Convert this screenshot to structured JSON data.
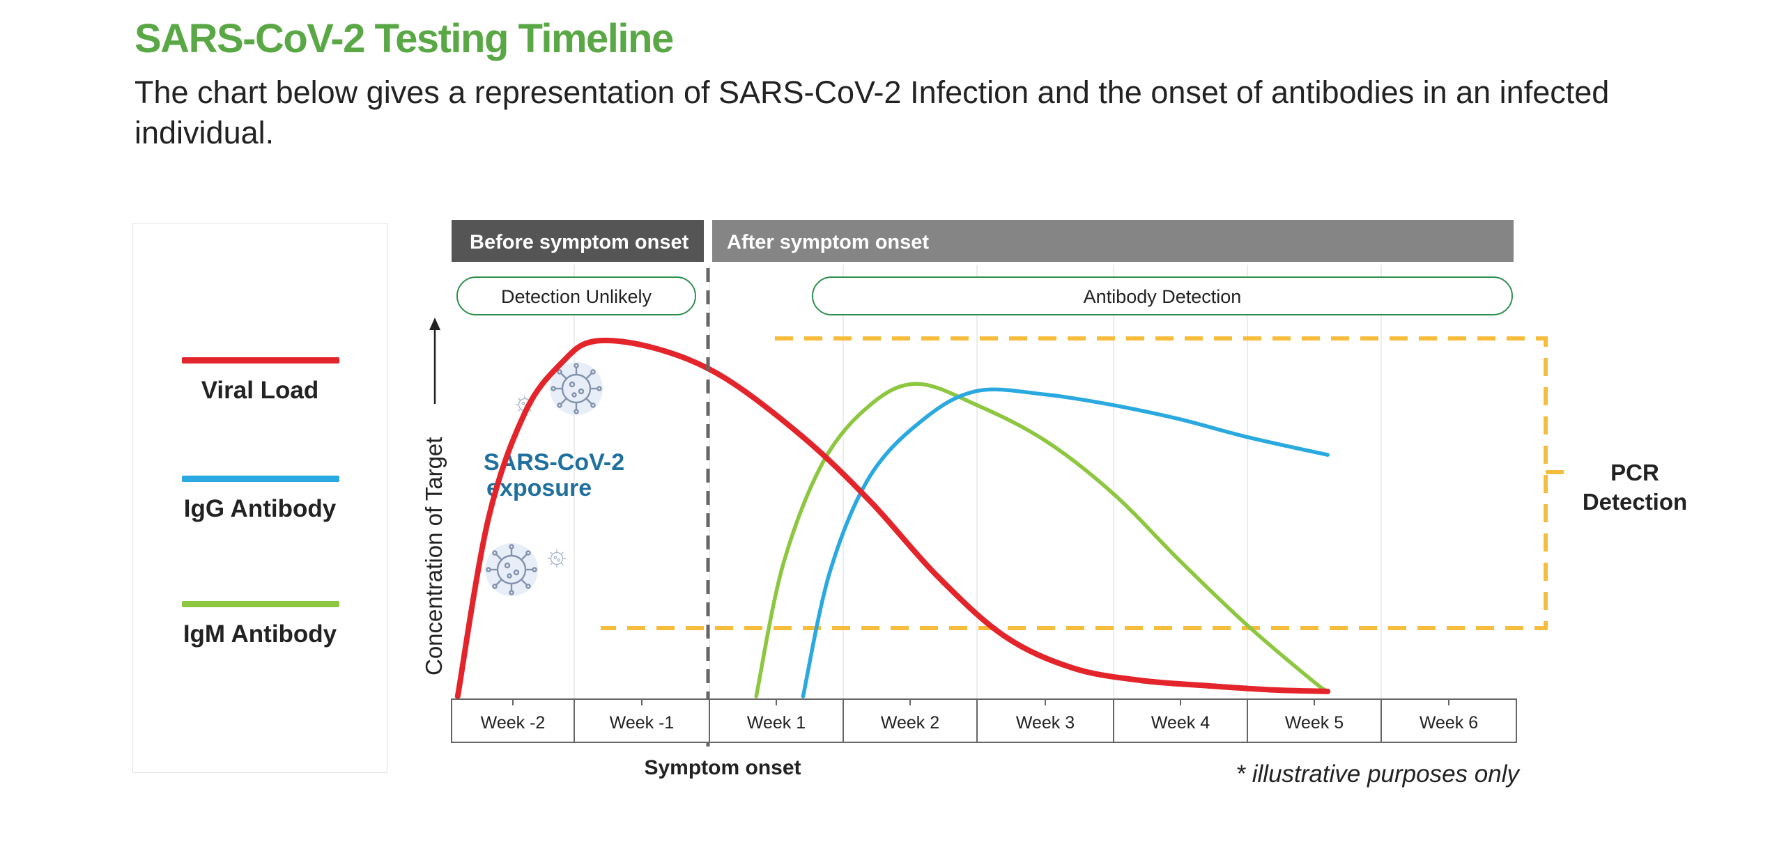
{
  "page": {
    "title": "SARS-CoV-2 Testing Timeline",
    "subtitle": "The chart below gives a representation of SARS-CoV-2 Infection and the onset of antibodies in an infected individual."
  },
  "legend": {
    "items": [
      {
        "label": "Viral Load",
        "color": "#e3242b"
      },
      {
        "label": "IgG Antibody",
        "color": "#29a9e0"
      },
      {
        "label": "IgM Antibody",
        "color": "#8dc63f"
      }
    ]
  },
  "chart_data": {
    "type": "line",
    "ylabel": "Concentration of Target",
    "xlabel": "Symptom onset",
    "grid": true,
    "categories": [
      "Week -2",
      "Week -1",
      "Week 1",
      "Week 2",
      "Week 3",
      "Week 4",
      "Week 5",
      "Week 6"
    ],
    "phases": [
      {
        "label": "Before symptom onset",
        "color": "#555555"
      },
      {
        "label": "After symptom onset",
        "color": "#858585"
      }
    ],
    "detection_windows": [
      {
        "label": "Detection Unlikely"
      },
      {
        "label": "Antibody Detection"
      }
    ],
    "exposure_label_line1": "SARS-CoV-2",
    "exposure_label_line2": "exposure",
    "exposure_color": "#1f6f9f",
    "pcr_label_line1": "PCR",
    "pcr_label_line2": "Detection",
    "pcr_color": "#f6bd3d",
    "footnote": "* illustrative purposes only",
    "series": [
      {
        "name": "Viral Load",
        "color": "#e3242b",
        "points": [
          [
            -1.95,
            0
          ],
          [
            -1.7,
            50
          ],
          [
            -1.4,
            80
          ],
          [
            -1.1,
            94
          ],
          [
            -0.85,
            100
          ],
          [
            -0.4,
            98
          ],
          [
            0.1,
            90
          ],
          [
            0.7,
            73
          ],
          [
            1.2,
            55
          ],
          [
            1.7,
            34
          ],
          [
            2.2,
            17
          ],
          [
            2.7,
            8
          ],
          [
            3.2,
            4.5
          ],
          [
            3.7,
            3
          ],
          [
            4.2,
            1.8
          ],
          [
            4.6,
            1.4
          ]
        ]
      },
      {
        "name": "IgG Antibody",
        "color": "#29a9e0",
        "points": [
          [
            0.7,
            0
          ],
          [
            0.9,
            35
          ],
          [
            1.2,
            62
          ],
          [
            1.6,
            78
          ],
          [
            2.0,
            86
          ],
          [
            2.5,
            85
          ],
          [
            3.0,
            82
          ],
          [
            3.5,
            78
          ],
          [
            4.0,
            73
          ],
          [
            4.6,
            68
          ]
        ]
      },
      {
        "name": "IgM Antibody",
        "color": "#8dc63f",
        "points": [
          [
            0.35,
            0
          ],
          [
            0.55,
            37
          ],
          [
            0.85,
            66
          ],
          [
            1.2,
            82
          ],
          [
            1.55,
            88
          ],
          [
            2.0,
            82
          ],
          [
            2.5,
            72
          ],
          [
            3.0,
            57
          ],
          [
            3.5,
            38
          ],
          [
            4.0,
            20
          ],
          [
            4.5,
            4
          ],
          [
            4.6,
            1.5
          ]
        ]
      }
    ]
  }
}
